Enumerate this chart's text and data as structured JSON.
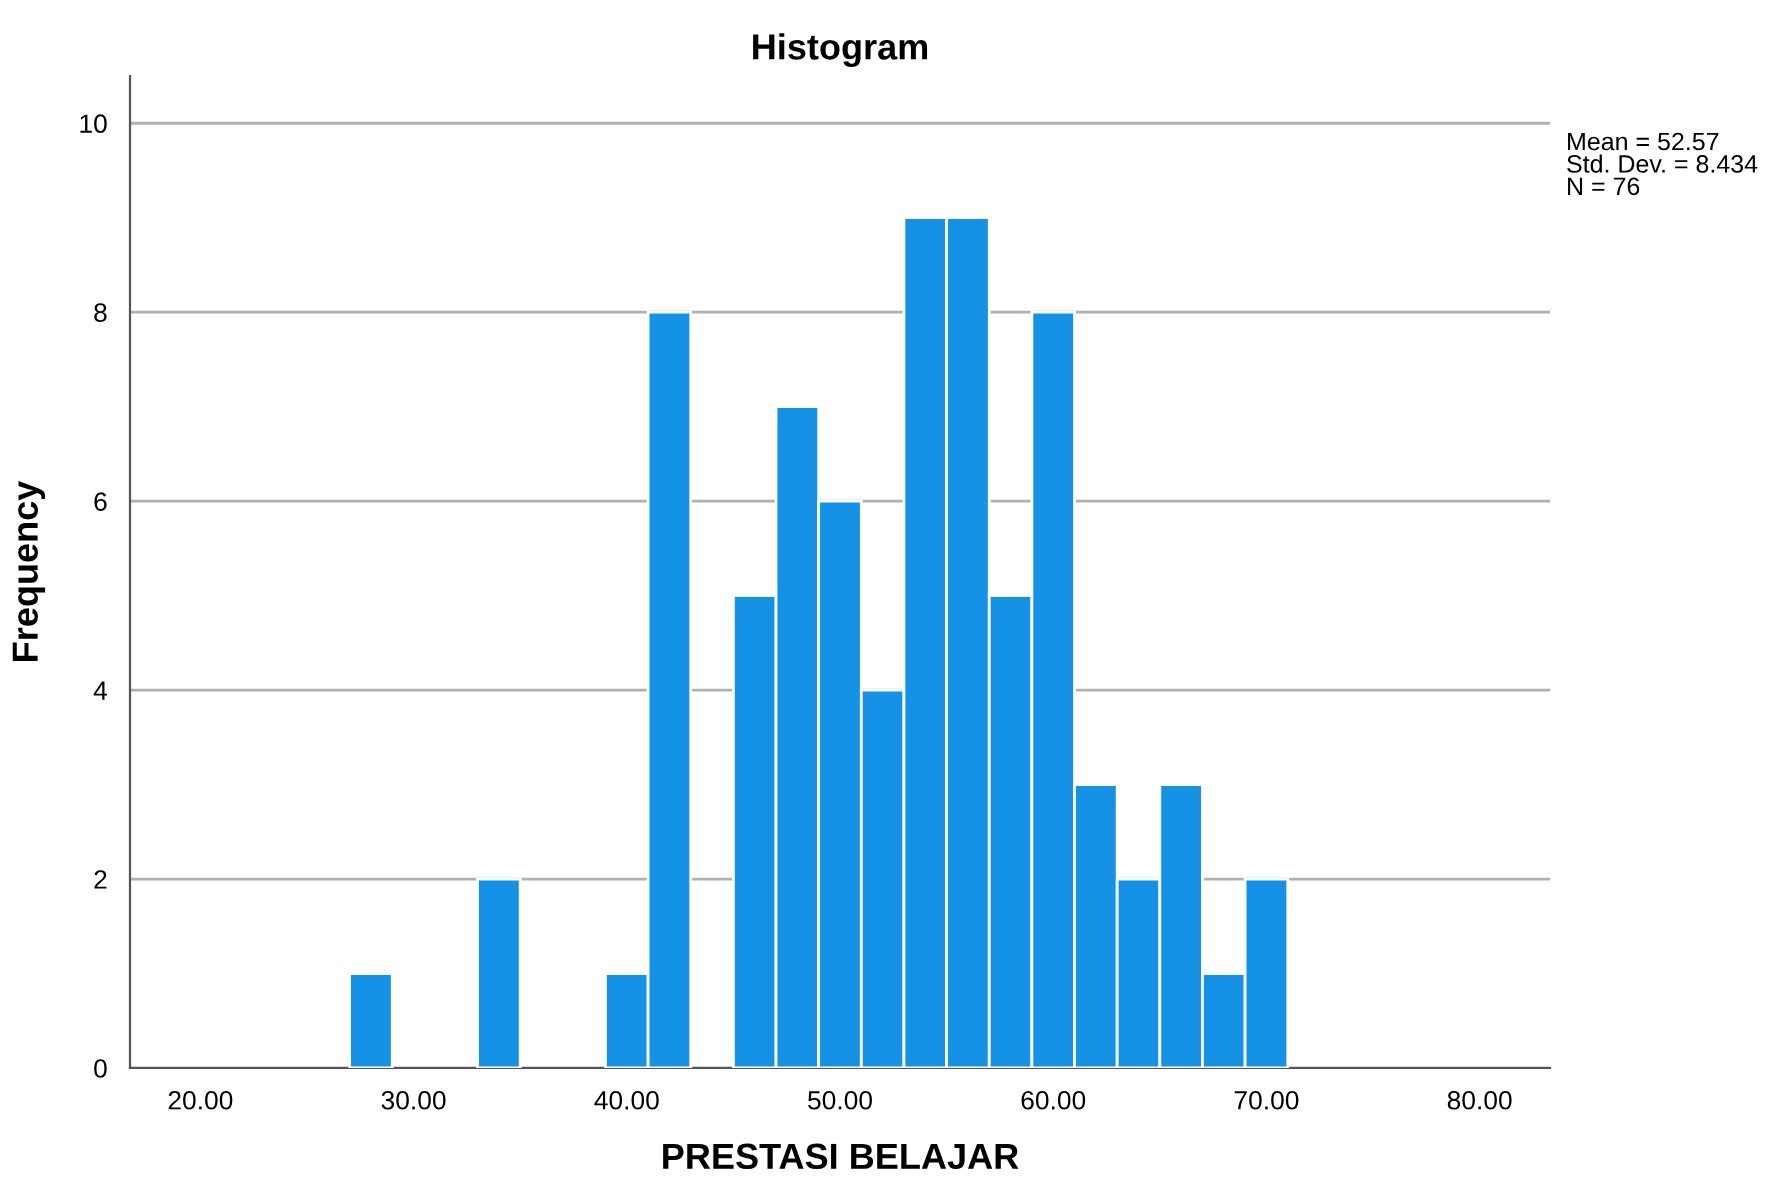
{
  "chart_data": {
    "type": "histogram",
    "title": "Histogram",
    "xlabel": "PRESTASI BELAJAR",
    "ylabel": "Frequency",
    "bins": [
      27,
      29,
      31,
      33,
      35,
      37,
      39,
      41,
      43,
      45,
      47,
      49,
      51,
      53,
      55,
      57,
      59,
      61,
      63,
      65,
      67,
      69,
      71
    ],
    "values": [
      1,
      0,
      0,
      2,
      0,
      0,
      1,
      8,
      0,
      5,
      7,
      6,
      4,
      9,
      9,
      5,
      8,
      3,
      2,
      3,
      1,
      2
    ],
    "color": "#1592e6",
    "xlim": [
      16.7,
      83.3
    ],
    "ylim": [
      0,
      10.5
    ],
    "xticks": [
      {
        "value": 20,
        "label": "20.00"
      },
      {
        "value": 30,
        "label": "30.00"
      },
      {
        "value": 40,
        "label": "40.00"
      },
      {
        "value": 50,
        "label": "50.00"
      },
      {
        "value": 60,
        "label": "60.00"
      },
      {
        "value": 70,
        "label": "70.00"
      },
      {
        "value": 80,
        "label": "80.00"
      }
    ],
    "yticks": [
      0,
      2,
      4,
      6,
      8,
      10
    ],
    "grid": "y",
    "annotations": [
      "Mean = 52.57\nStd. Dev. = 8.434\nN = 76"
    ]
  }
}
